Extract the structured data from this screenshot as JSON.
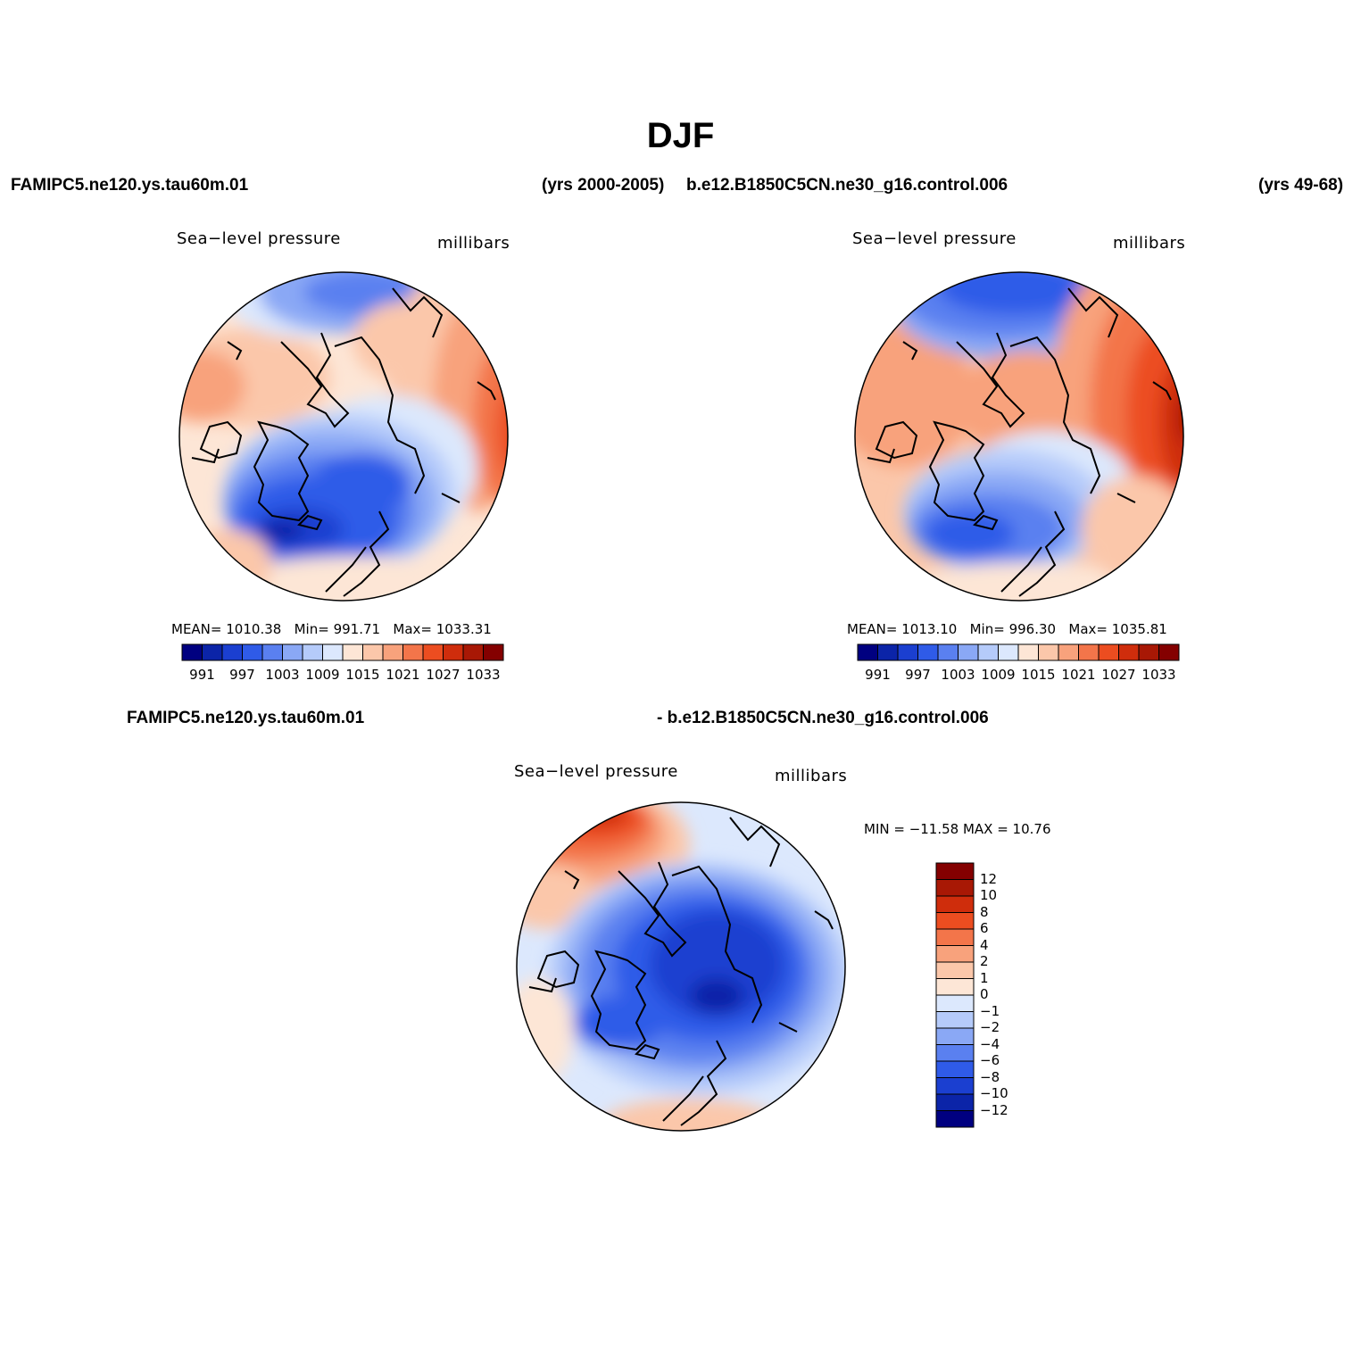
{
  "figure": {
    "title": "DJF",
    "case1": "FAMIPC5.ne120.ys.tau60m.01",
    "case1_years": "(yrs 2000-2005)",
    "case2": "b.e12.B1850C5CN.ne30_g16.control.006",
    "case2_years": "(yrs 49-68)",
    "diff_left": "FAMIPC5.ne120.ys.tau60m.01",
    "diff_right": "- b.e12.B1850C5CN.ne30_g16.control.006"
  },
  "panels": [
    {
      "variable": "Sea−level pressure",
      "units": "millibars",
      "stats": {
        "mean_label": "MEAN=",
        "mean": "1010.38",
        "min_label": "Min=",
        "min": "991.71",
        "max_label": "Max=",
        "max": "1033.31"
      }
    },
    {
      "variable": "Sea−level pressure",
      "units": "millibars",
      "stats": {
        "mean_label": "MEAN=",
        "mean": "1013.10",
        "min_label": "Min=",
        "min": "996.30",
        "max_label": "Max=",
        "max": "1035.81"
      }
    },
    {
      "variable": "Sea−level pressure",
      "units": "millibars",
      "stats_text": "MIN = −11.58 MAX =   10.76"
    }
  ],
  "colorbar_abs": {
    "tick_labels": [
      "991",
      "997",
      "1003",
      "1009",
      "1015",
      "1021",
      "1027",
      "1033"
    ],
    "colors": [
      "#000080",
      "#0b24a8",
      "#1b3fd0",
      "#2f5be8",
      "#5a80f0",
      "#8aa8f5",
      "#b5cbfa",
      "#dce8fd",
      "#fde6d6",
      "#fbc7aa",
      "#f8a27c",
      "#f3754a",
      "#ec4d20",
      "#cf2d0c",
      "#a81805",
      "#840000"
    ]
  },
  "colorbar_diff": {
    "tick_labels": [
      "12",
      "10",
      "8",
      "6",
      "4",
      "2",
      "1",
      "0",
      "−1",
      "−2",
      "−4",
      "−6",
      "−8",
      "−10",
      "−12"
    ],
    "colors": [
      "#840000",
      "#a81805",
      "#cf2d0c",
      "#ec4d20",
      "#f3754a",
      "#f8a27c",
      "#fbc7aa",
      "#fde6d6",
      "#dce8fd",
      "#b5cbfa",
      "#8aa8f5",
      "#5a80f0",
      "#2f5be8",
      "#1b3fd0",
      "#0b24a8",
      "#000080"
    ]
  },
  "chart_data": [
    {
      "type": "heatmap",
      "title": "Sea−level pressure",
      "units": "millibars",
      "projection": "north polar stereographic",
      "case": "FAMIPC5.ne120.ys.tau60m.01",
      "mean": 1010.38,
      "min": 991.71,
      "max": 1033.31,
      "levels": [
        991,
        994,
        997,
        1000,
        1003,
        1006,
        1009,
        1012,
        1015,
        1018,
        1021,
        1024,
        1027,
        1030,
        1033
      ]
    },
    {
      "type": "heatmap",
      "title": "Sea−level pressure",
      "units": "millibars",
      "projection": "north polar stereographic",
      "case": "b.e12.B1850C5CN.ne30_g16.control.006",
      "mean": 1013.1,
      "min": 996.3,
      "max": 1035.81,
      "levels": [
        991,
        994,
        997,
        1000,
        1003,
        1006,
        1009,
        1012,
        1015,
        1018,
        1021,
        1024,
        1027,
        1030,
        1033
      ]
    },
    {
      "type": "heatmap",
      "title": "Sea−level pressure",
      "units": "millibars",
      "projection": "north polar stereographic",
      "case": "difference",
      "min": -11.58,
      "max": 10.76,
      "levels": [
        -12,
        -10,
        -8,
        -6,
        -4,
        -2,
        -1,
        0,
        1,
        2,
        4,
        6,
        8,
        10,
        12
      ]
    }
  ]
}
